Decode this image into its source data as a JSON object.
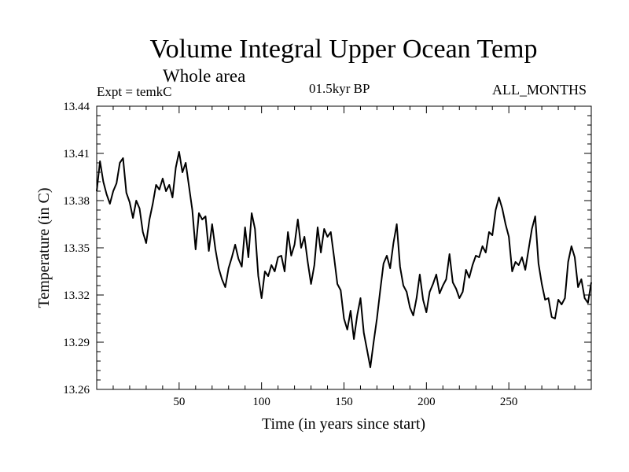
{
  "chart_data": {
    "type": "line",
    "title": "Volume Integral Upper Ocean Temp",
    "subtitle": "Whole area",
    "expt_label": "Expt = temkC",
    "period_label": "01.5kyr BP",
    "months_label": "ALL_MONTHS",
    "xlabel": "Time (in years since start)",
    "ylabel": "Temperature (in C)",
    "xlim": [
      0,
      300
    ],
    "ylim": [
      13.26,
      13.44
    ],
    "x_ticks": [
      50,
      100,
      150,
      200,
      250
    ],
    "x_tick_labels": [
      "50",
      "100",
      "150",
      "200",
      "250"
    ],
    "y_ticks": [
      13.26,
      13.29,
      13.32,
      13.35,
      13.38,
      13.41,
      13.44
    ],
    "y_tick_labels": [
      "13.26",
      "13.29",
      "13.32",
      "13.35",
      "13.38",
      "13.41",
      "13.44"
    ],
    "grid": false,
    "series": [
      {
        "name": "temkC",
        "color": "#000000",
        "x": [
          0,
          2,
          4,
          6,
          8,
          10,
          12,
          14,
          16,
          18,
          20,
          22,
          24,
          26,
          28,
          30,
          32,
          34,
          36,
          38,
          40,
          42,
          44,
          46,
          48,
          50,
          52,
          54,
          56,
          58,
          60,
          62,
          64,
          66,
          68,
          70,
          72,
          74,
          76,
          78,
          80,
          82,
          84,
          86,
          88,
          90,
          92,
          94,
          96,
          98,
          100,
          102,
          104,
          106,
          108,
          110,
          112,
          114,
          116,
          118,
          120,
          122,
          124,
          126,
          128,
          130,
          132,
          134,
          136,
          138,
          140,
          142,
          144,
          146,
          148,
          150,
          152,
          154,
          156,
          158,
          160,
          162,
          164,
          166,
          168,
          170,
          172,
          174,
          176,
          178,
          180,
          182,
          184,
          186,
          188,
          190,
          192,
          194,
          196,
          198,
          200,
          202,
          204,
          206,
          208,
          210,
          212,
          214,
          216,
          218,
          220,
          222,
          224,
          226,
          228,
          230,
          232,
          234,
          236,
          238,
          240,
          242,
          244,
          246,
          248,
          250,
          252,
          254,
          256,
          258,
          260,
          262,
          264,
          266,
          268,
          270,
          272,
          274,
          276,
          278,
          280,
          282,
          284,
          286,
          288,
          290,
          292,
          294,
          296,
          298,
          300
        ],
        "y": [
          13.386,
          13.405,
          13.392,
          13.384,
          13.378,
          13.386,
          13.391,
          13.404,
          13.407,
          13.385,
          13.379,
          13.369,
          13.38,
          13.375,
          13.36,
          13.353,
          13.368,
          13.378,
          13.39,
          13.387,
          13.394,
          13.386,
          13.39,
          13.382,
          13.401,
          13.411,
          13.398,
          13.404,
          13.389,
          13.374,
          13.349,
          13.372,
          13.368,
          13.37,
          13.348,
          13.365,
          13.349,
          13.337,
          13.33,
          13.325,
          13.337,
          13.344,
          13.352,
          13.343,
          13.338,
          13.363,
          13.344,
          13.372,
          13.362,
          13.332,
          13.318,
          13.335,
          13.332,
          13.339,
          13.335,
          13.344,
          13.345,
          13.335,
          13.36,
          13.345,
          13.352,
          13.368,
          13.35,
          13.357,
          13.341,
          13.327,
          13.339,
          13.363,
          13.347,
          13.362,
          13.357,
          13.36,
          13.344,
          13.327,
          13.323,
          13.305,
          13.298,
          13.31,
          13.292,
          13.307,
          13.318,
          13.296,
          13.285,
          13.274,
          13.29,
          13.305,
          13.323,
          13.34,
          13.345,
          13.337,
          13.353,
          13.365,
          13.338,
          13.326,
          13.322,
          13.312,
          13.307,
          13.318,
          13.333,
          13.317,
          13.309,
          13.322,
          13.327,
          13.333,
          13.321,
          13.326,
          13.33,
          13.346,
          13.328,
          13.324,
          13.318,
          13.322,
          13.336,
          13.331,
          13.339,
          13.345,
          13.344,
          13.351,
          13.347,
          13.36,
          13.358,
          13.374,
          13.382,
          13.375,
          13.365,
          13.357,
          13.335,
          13.341,
          13.339,
          13.344,
          13.336,
          13.349,
          13.362,
          13.37,
          13.34,
          13.327,
          13.317,
          13.318,
          13.306,
          13.305,
          13.317,
          13.314,
          13.318,
          13.341,
          13.351,
          13.344,
          13.325,
          13.33,
          13.318,
          13.315,
          13.328
        ]
      }
    ]
  }
}
